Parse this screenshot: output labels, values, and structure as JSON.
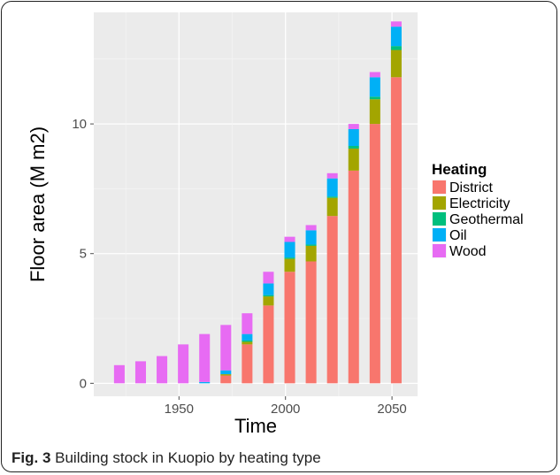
{
  "chart_data": {
    "type": "bar",
    "stacked": true,
    "xlabel": "Time",
    "ylabel": "Floor area (M m2)",
    "xlim": [
      1910,
      2062
    ],
    "ylim": [
      -0.5,
      14.3
    ],
    "x_ticks": [
      1950,
      2000,
      2050
    ],
    "y_ticks": [
      0,
      5,
      10
    ],
    "bar_width_years": 5,
    "grid": true,
    "legend_position": "right",
    "legend_title": "Heating",
    "x": [
      1922,
      1932,
      1942,
      1952,
      1962,
      1972,
      1982,
      1992,
      2002,
      2012,
      2022,
      2032,
      2042,
      2052
    ],
    "series": [
      {
        "name": "District",
        "color": "#F8766D",
        "values": [
          0,
          0,
          0,
          0,
          0,
          0.3,
          1.5,
          3.0,
          4.3,
          4.7,
          6.45,
          8.2,
          10.0,
          11.8
        ]
      },
      {
        "name": "Electricity",
        "color": "#A3A500",
        "values": [
          0,
          0,
          0,
          0,
          0,
          0.05,
          0.1,
          0.35,
          0.5,
          0.6,
          0.7,
          0.85,
          0.95,
          1.05
        ]
      },
      {
        "name": "Geothermal",
        "color": "#00BF7D",
        "values": [
          0,
          0,
          0,
          0,
          0,
          0,
          0.05,
          0.05,
          0.05,
          0.05,
          0.05,
          0.1,
          0.1,
          0.15
        ]
      },
      {
        "name": "Oil",
        "color": "#00B0F6",
        "values": [
          0,
          0,
          0,
          0,
          0.05,
          0.15,
          0.25,
          0.45,
          0.6,
          0.55,
          0.7,
          0.65,
          0.75,
          0.75
        ]
      },
      {
        "name": "Wood",
        "color": "#E76BF3",
        "values": [
          0.7,
          0.85,
          1.05,
          1.5,
          1.85,
          1.75,
          0.8,
          0.45,
          0.2,
          0.2,
          0.2,
          0.2,
          0.2,
          0.2
        ]
      }
    ]
  },
  "caption": {
    "label": "Fig. 3",
    "text": " Building stock in Kuopio by heating type"
  }
}
